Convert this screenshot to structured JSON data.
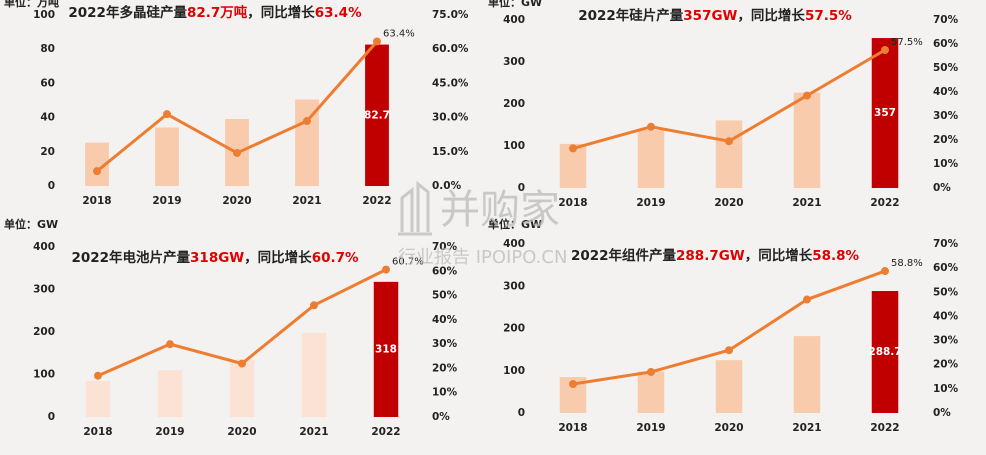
{
  "chart_data": [
    {
      "type": "combo",
      "title": [
        "2022年多晶硅产量",
        "82.7万吨",
        "，同比增长",
        "63.4%"
      ],
      "title_highlight_color": "#e00000",
      "unit_label": "单位：万吨",
      "categories": [
        "2018",
        "2019",
        "2020",
        "2021",
        "2022"
      ],
      "series": [
        {
          "type": "bar",
          "colors": [
            "#f8cbad",
            "#f8cbad",
            "#f8cbad",
            "#f8cbad",
            "#c00000"
          ],
          "values": [
            25.4,
            34.2,
            39.2,
            50.6,
            82.7
          ],
          "value_labels": [
            null,
            null,
            null,
            null,
            "82.7"
          ]
        },
        {
          "type": "line",
          "axis": "y2",
          "color": "#ed7d31",
          "values": [
            6.5,
            31.5,
            14.5,
            28.5,
            63.4
          ],
          "value_labels": [
            null,
            null,
            null,
            null,
            "63.4%"
          ]
        }
      ],
      "ylim": [
        0,
        100
      ],
      "yticks": [
        0,
        20,
        40,
        60,
        80,
        100
      ],
      "y2lim": [
        0,
        75
      ],
      "y2ticks": [
        {
          "value": 0,
          "label": "0.0%"
        },
        {
          "value": 15,
          "label": "15.0%"
        },
        {
          "value": 30,
          "label": "30.0%"
        },
        {
          "value": 45,
          "label": "45.0%"
        },
        {
          "value": 60,
          "label": "60.0%"
        },
        {
          "value": 75,
          "label": "75.0%"
        }
      ]
    },
    {
      "type": "combo",
      "title": [
        "2022年硅片产量",
        "357GW",
        "，同比增长",
        "57.5%"
      ],
      "title_highlight_color": "#e00000",
      "unit_label": "单位：GW",
      "categories": [
        "2018",
        "2019",
        "2020",
        "2021",
        "2022"
      ],
      "series": [
        {
          "type": "bar",
          "colors": [
            "#f8cbad",
            "#f8cbad",
            "#f8cbad",
            "#f8cbad",
            "#c00000"
          ],
          "values": [
            105,
            138,
            161,
            227,
            357
          ],
          "value_labels": [
            null,
            null,
            null,
            null,
            "357"
          ]
        },
        {
          "type": "line",
          "axis": "y2",
          "color": "#ed7d31",
          "values": [
            16.5,
            25.5,
            19.5,
            38.5,
            57.5
          ],
          "value_labels": [
            null,
            null,
            null,
            null,
            "57.5%"
          ]
        }
      ],
      "ylim": [
        0,
        400
      ],
      "yticks": [
        0,
        100,
        200,
        300,
        400
      ],
      "y2lim": [
        0,
        70
      ],
      "y2ticks": [
        {
          "value": 0,
          "label": "0%"
        },
        {
          "value": 10,
          "label": "10%"
        },
        {
          "value": 20,
          "label": "20%"
        },
        {
          "value": 30,
          "label": "30%"
        },
        {
          "value": 40,
          "label": "40%"
        },
        {
          "value": 50,
          "label": "50%"
        },
        {
          "value": 60,
          "label": "60%"
        },
        {
          "value": 70,
          "label": "70%"
        }
      ]
    },
    {
      "type": "combo",
      "title": [
        "2022年电池片产量",
        "318GW",
        "，同比增长",
        "60.7%"
      ],
      "title_highlight_color": "#e00000",
      "unit_label": "单位：GW",
      "categories": [
        "2018",
        "2019",
        "2020",
        "2021",
        "2022"
      ],
      "series": [
        {
          "type": "bar",
          "colors": [
            "#fbe2d5",
            "#fbe2d5",
            "#fbe2d5",
            "#fbe2d5",
            "#c00000"
          ],
          "values": [
            85,
            110,
            135,
            198,
            318
          ],
          "value_labels": [
            null,
            null,
            null,
            null,
            "318"
          ]
        },
        {
          "type": "line",
          "axis": "y2",
          "color": "#ed7d31",
          "values": [
            17,
            30,
            22,
            46,
            60.7
          ],
          "value_labels": [
            null,
            null,
            null,
            null,
            "60.7%"
          ]
        }
      ],
      "ylim": [
        0,
        400
      ],
      "yticks": [
        0,
        100,
        200,
        300,
        400
      ],
      "y2lim": [
        0,
        70
      ],
      "y2ticks": [
        {
          "value": 0,
          "label": "0%"
        },
        {
          "value": 10,
          "label": "10%"
        },
        {
          "value": 20,
          "label": "20%"
        },
        {
          "value": 30,
          "label": "30%"
        },
        {
          "value": 40,
          "label": "40%"
        },
        {
          "value": 50,
          "label": "50%"
        },
        {
          "value": 60,
          "label": "60%"
        },
        {
          "value": 70,
          "label": "70%"
        }
      ]
    },
    {
      "type": "combo",
      "title": [
        "2022年组件产量",
        "288.7GW",
        "，同比增长",
        "58.8%"
      ],
      "title_highlight_color": "#e00000",
      "unit_label": "单位：GW",
      "categories": [
        "2018",
        "2019",
        "2020",
        "2021",
        "2022"
      ],
      "series": [
        {
          "type": "bar",
          "colors": [
            "#f8cbad",
            "#f8cbad",
            "#f8cbad",
            "#f8cbad",
            "#c00000"
          ],
          "values": [
            85,
            98,
            125,
            182,
            288.7
          ],
          "value_labels": [
            null,
            null,
            null,
            null,
            "288.7"
          ]
        },
        {
          "type": "line",
          "axis": "y2",
          "color": "#ed7d31",
          "values": [
            12,
            17,
            26,
            47,
            58.8
          ],
          "value_labels": [
            null,
            null,
            null,
            null,
            "58.8%"
          ]
        }
      ],
      "ylim": [
        0,
        400
      ],
      "yticks": [
        0,
        100,
        200,
        300,
        400
      ],
      "y2lim": [
        0,
        70
      ],
      "y2ticks": [
        {
          "value": 0,
          "label": "0%"
        },
        {
          "value": 10,
          "label": "10%"
        },
        {
          "value": 20,
          "label": "20%"
        },
        {
          "value": 30,
          "label": "30%"
        },
        {
          "value": 40,
          "label": "40%"
        },
        {
          "value": 50,
          "label": "50%"
        },
        {
          "value": 60,
          "label": "60%"
        },
        {
          "value": 70,
          "label": "70%"
        }
      ]
    }
  ],
  "watermark": {
    "title": "并购家",
    "subtitle": "行业报告 IPOIPO.CN"
  }
}
